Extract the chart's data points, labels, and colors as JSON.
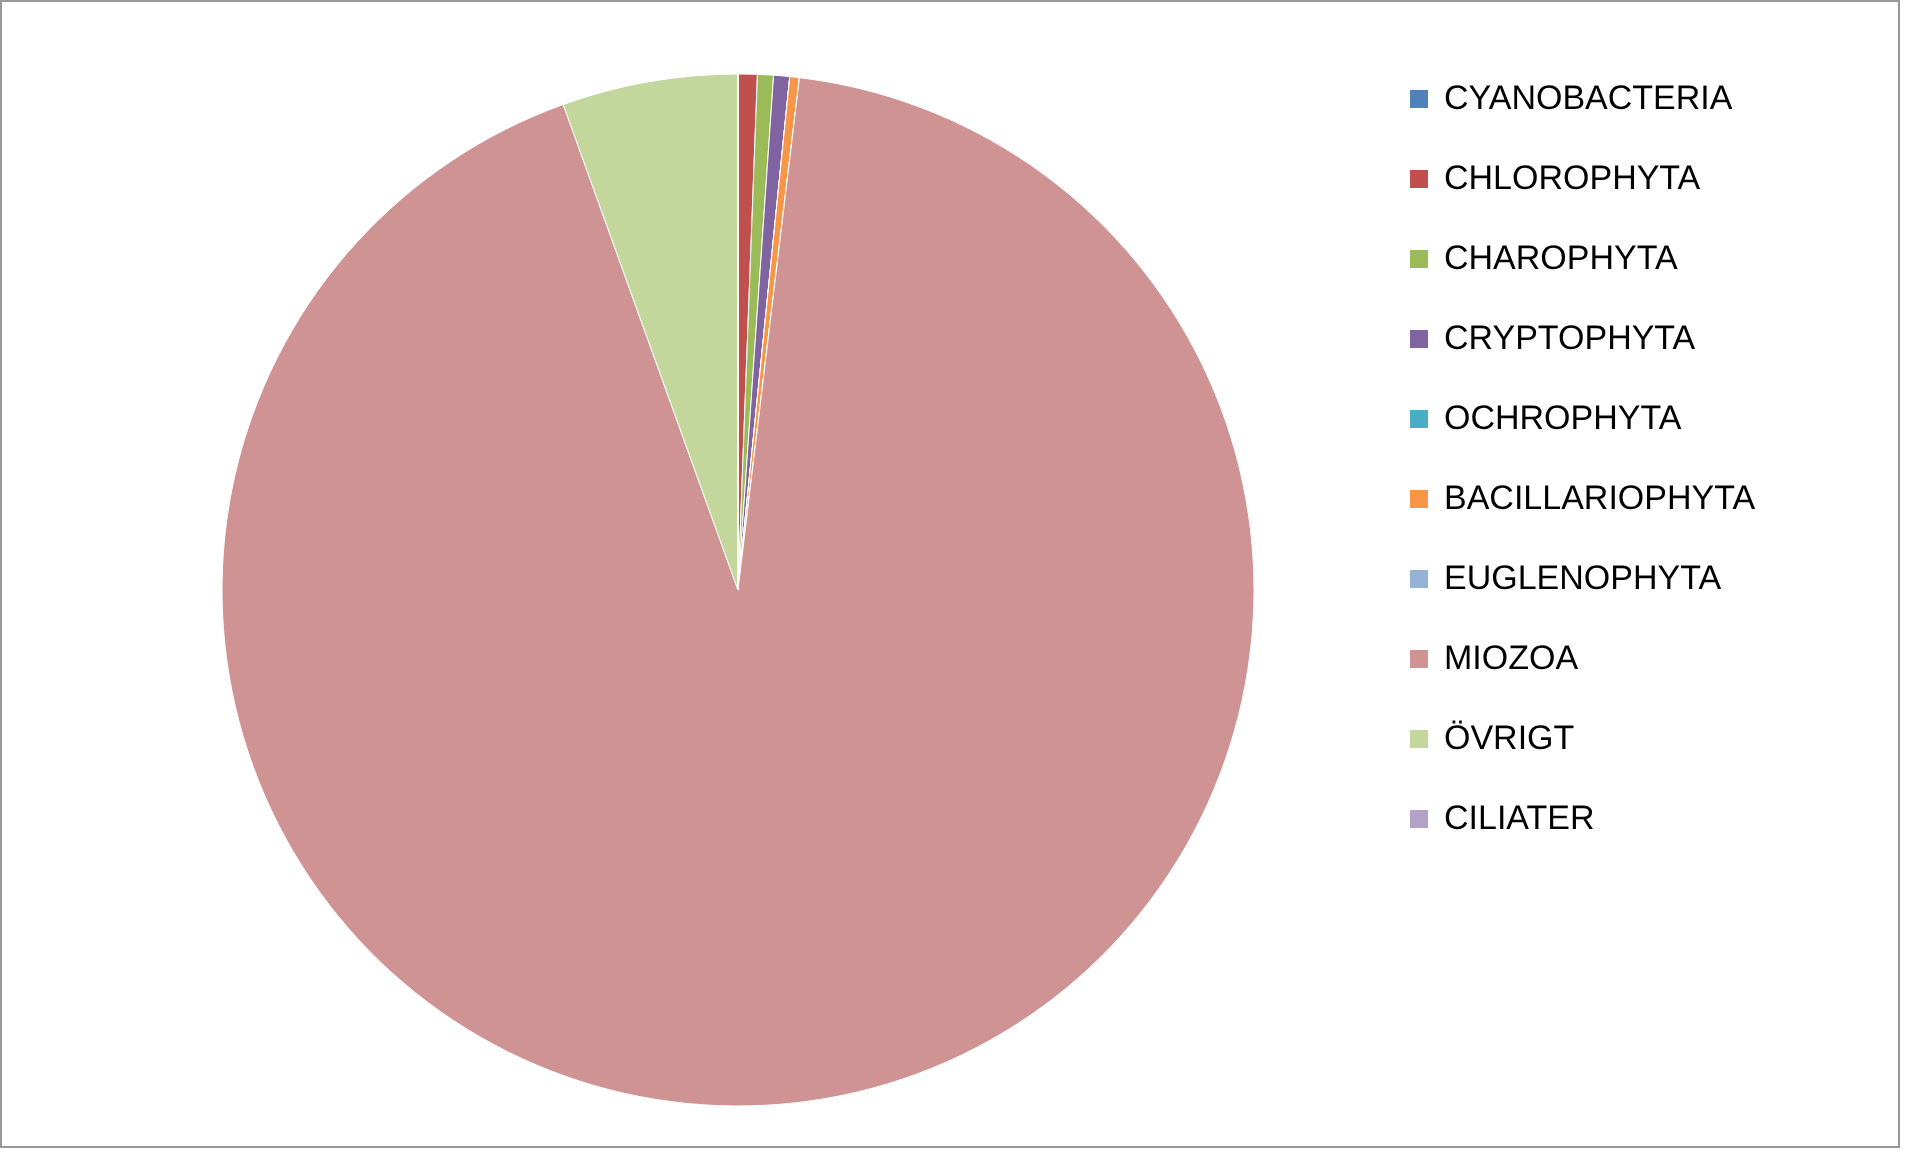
{
  "chart_data": {
    "type": "pie",
    "categories": [
      "CYANOBACTERIA",
      "CHLOROPHYTA",
      "CHAROPHYTA",
      "CRYPTOPHYTA",
      "OCHROPHYTA",
      "BACILLARIOPHYTA",
      "EUGLENOPHYTA",
      "MIOZOA",
      "ÖVRIGT",
      "CILIATER"
    ],
    "values": [
      0,
      0.6,
      0.5,
      0.5,
      0,
      0.3,
      0,
      92.6,
      5.5,
      0
    ],
    "colors": [
      "#4f81bd",
      "#c0504d",
      "#9bbb59",
      "#8064a2",
      "#4bacc6",
      "#f79646",
      "#95b3d7",
      "#d09393",
      "#c3d69b",
      "#b3a2c7"
    ],
    "legend": "right"
  }
}
